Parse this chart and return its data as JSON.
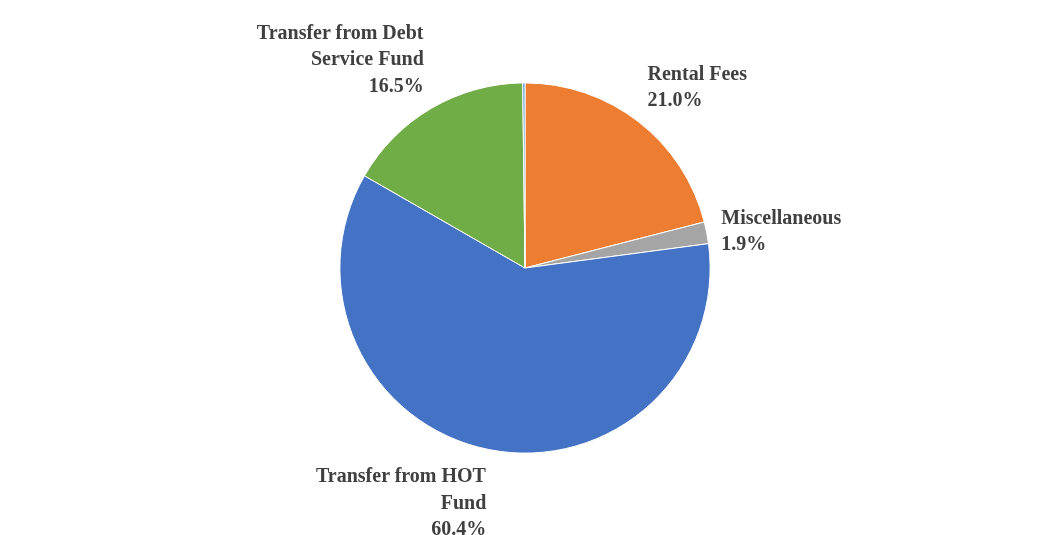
{
  "chart_data": {
    "type": "pie",
    "categories": [
      "Rental Fees",
      "Miscellaneous",
      "Transfer from HOT Fund",
      "Transfer from Debt Service Fund",
      null
    ],
    "values": [
      21.0,
      1.9,
      60.4,
      16.5,
      0.2
    ],
    "value_labels": [
      "21.0%",
      "1.9%",
      "60.4%",
      "16.5%",
      null
    ],
    "colors": [
      "#ed7d31",
      "#a5a5a5",
      "#4472c4",
      "#70ad47",
      "#5b9bd5"
    ]
  }
}
